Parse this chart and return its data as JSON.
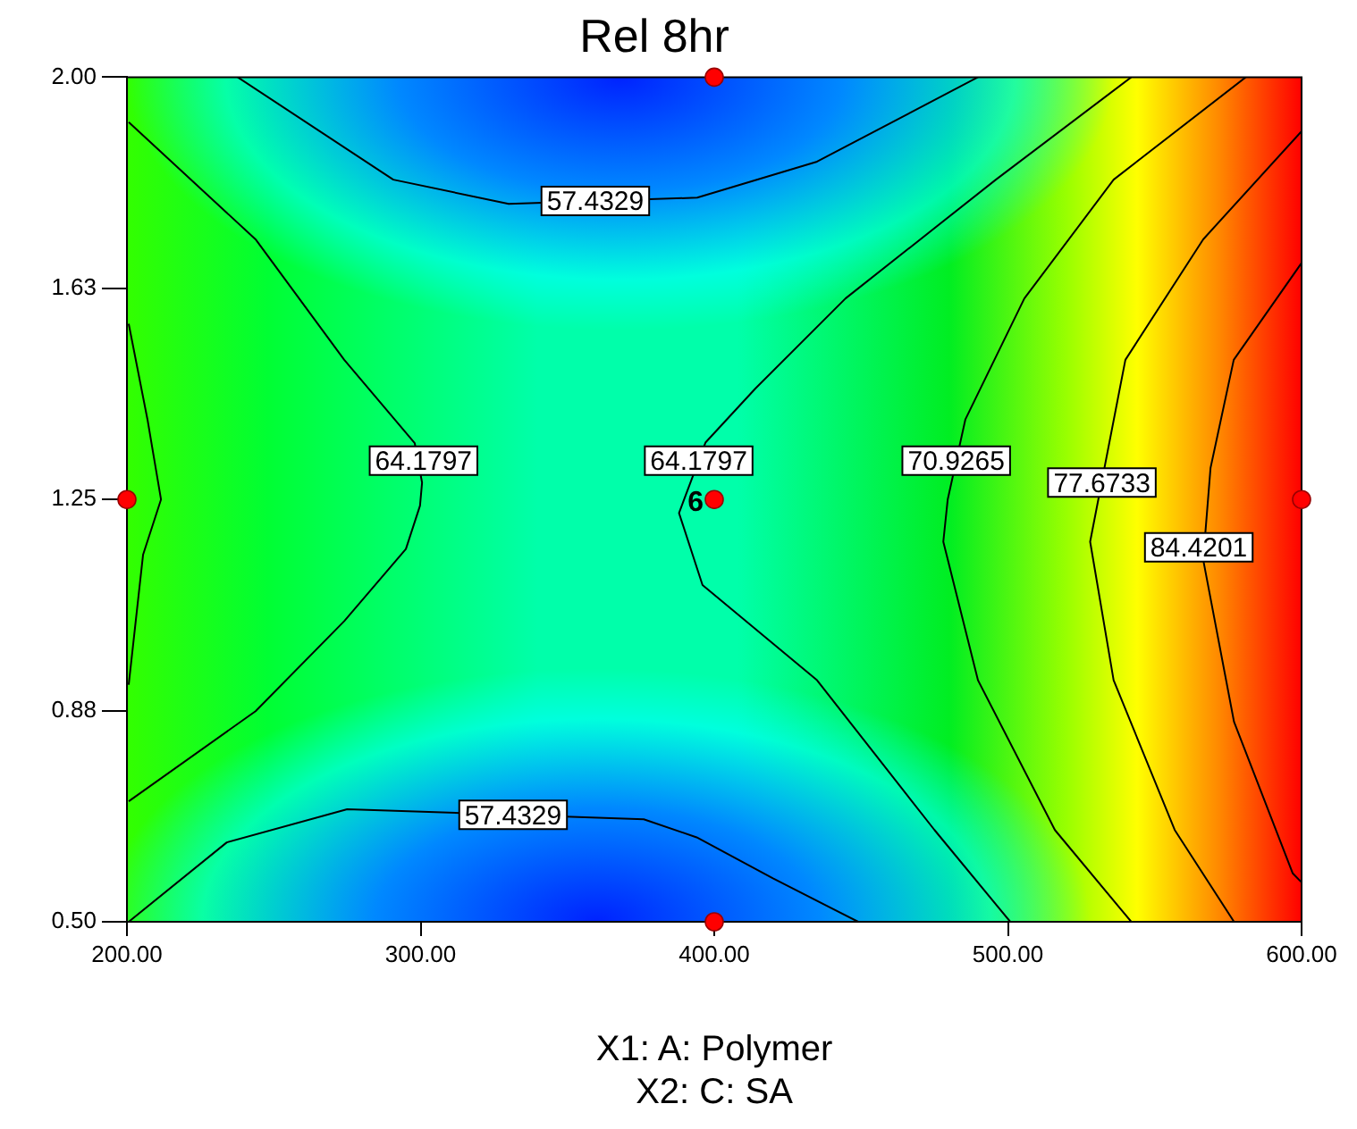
{
  "chart_data": {
    "type": "line",
    "title": "Rel 8hr",
    "xlabel": "X1: A: Polymer\nX2: C: SA",
    "xlim": [
      200,
      600
    ],
    "ylim": [
      0.5,
      2.0
    ],
    "xticks": [
      {
        "value": 200,
        "label": "200.00"
      },
      {
        "value": 300,
        "label": "300.00"
      },
      {
        "value": 400,
        "label": "400.00"
      },
      {
        "value": 500,
        "label": "500.00"
      },
      {
        "value": 600,
        "label": "600.00"
      }
    ],
    "yticks": [
      {
        "value": 0.5,
        "label": "0.50"
      },
      {
        "value": 0.875,
        "label": "0.88"
      },
      {
        "value": 1.25,
        "label": "1.25"
      },
      {
        "value": 1.625,
        "label": "1.63"
      },
      {
        "value": 2.0,
        "label": "2.00"
      }
    ],
    "legend": false,
    "series": [
      {
        "color": "#000000",
        "marker": "none",
        "x": [
          237.7,
          290.7,
          330,
          359.5,
          394.2,
          435,
          489.8
        ],
        "values": [
          2.0,
          1.818,
          1.775,
          null,
          1.786,
          1.85,
          2.0
        ]
      },
      {
        "color": "#000000",
        "marker": "none",
        "x": [
          200.6,
          234,
          275,
          315,
          331.5,
          376,
          394,
          420,
          449
        ],
        "values": [
          0.5,
          0.641,
          0.7,
          null,
          null,
          0.682,
          0.65,
          0.577,
          0.5
        ]
      },
      {
        "color": "#000000",
        "marker": "none",
        "x": [
          200.6,
          243.8,
          274,
          298,
          300.5,
          299.8,
          295,
          274,
          243.8,
          200.6
        ],
        "values": [
          1.92,
          1.712,
          1.498,
          1.35,
          1.28,
          1.239,
          1.162,
          1.034,
          0.874,
          0.714
        ]
      },
      {
        "color": "#000000",
        "marker": "none",
        "x": [
          200.6,
          207,
          211.6,
          205.5,
          200.6
        ],
        "values": [
          1.562,
          1.392,
          1.25,
          1.152,
          0.921
        ]
      },
      {
        "color": "#000000",
        "marker": "none",
        "x": [
          542,
          495.9,
          444.7,
          414,
          397,
          394.7,
          388,
          396,
          435,
          475,
          500.8
        ],
        "values": [
          2.0,
          1.818,
          1.607,
          1.447,
          1.351,
          null,
          1.226,
          1.098,
          0.929,
          0.663,
          0.5
        ]
      },
      {
        "color": "#000000",
        "marker": "none",
        "x": [
          581,
          536,
          505.6,
          485.5,
          482.4,
          479.5,
          478,
          489.8,
          516,
          542
        ],
        "values": [
          2.0,
          1.818,
          1.607,
          1.392,
          null,
          1.25,
          1.175,
          0.929,
          0.663,
          0.5
        ]
      },
      {
        "color": "#000000",
        "marker": "none",
        "x": [
          600,
          566.5,
          540,
          528,
          536,
          556.8,
          577
        ],
        "values": [
          1.904,
          1.712,
          1.498,
          1.175,
          0.929,
          0.663,
          0.5
        ]
      },
      {
        "color": "#000000",
        "marker": "none",
        "x": [
          600,
          576.9,
          569,
          566.5,
          577,
          597,
          600
        ],
        "values": [
          1.67,
          1.498,
          1.306,
          1.143,
          0.855,
          0.586,
          0.57
        ]
      },
      {
        "type": "scatter",
        "color": "#ff0000",
        "marker": "circle",
        "x": [
          200,
          400,
          400,
          400,
          600
        ],
        "values": [
          1.25,
          2.0,
          1.25,
          0.5,
          1.25
        ]
      }
    ],
    "annotations": [
      {
        "text": "57.4329",
        "x": 359.5,
        "y": 1.78
      },
      {
        "text": "57.4329",
        "x": 331.5,
        "y": 0.69
      },
      {
        "text": "64.1797",
        "x": 301,
        "y": 1.319
      },
      {
        "text": "64.1797",
        "x": 394.7,
        "y": 1.319
      },
      {
        "text": "70.9265",
        "x": 482.4,
        "y": 1.319
      },
      {
        "text": "77.6733",
        "x": 532,
        "y": 1.28
      },
      {
        "text": "84.4201",
        "x": 565,
        "y": 1.165
      },
      {
        "text": "6",
        "x": 400,
        "y": 1.25
      }
    ]
  }
}
